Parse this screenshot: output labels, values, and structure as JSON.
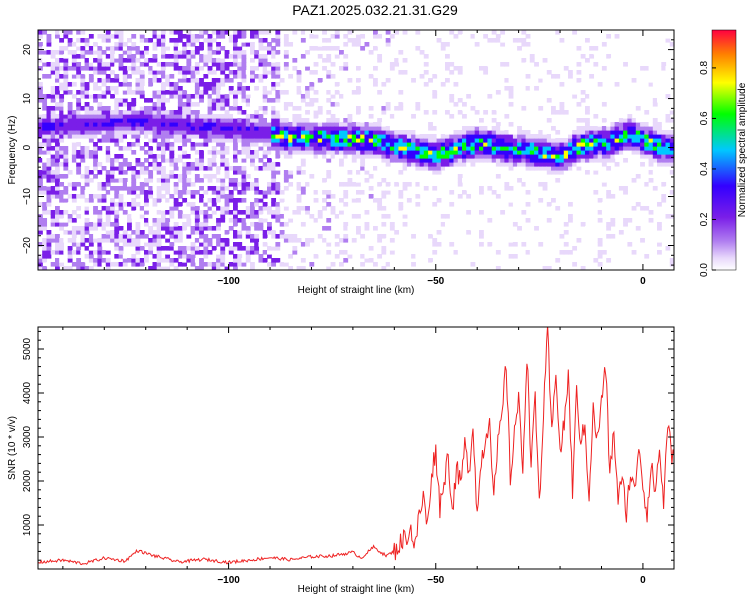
{
  "title": "PAZ1.2025.032.21.31.G29",
  "colors": {
    "snr_line": "#ee2222",
    "colormap": [
      "#ffffff",
      "#e8d8fb",
      "#b07ef0",
      "#7a1ee8",
      "#3300ff",
      "#00c8ff",
      "#00ff00",
      "#ffff00",
      "#ff7f00",
      "#ff0040"
    ]
  },
  "chart_data": [
    {
      "type": "heatmap",
      "title": "PAZ1.2025.032.21.31.G29",
      "xlabel": "Height of straight line (km)",
      "ylabel": "Frequency (Hz)",
      "xlim": [
        -146,
        7.5
      ],
      "ylim": [
        -25,
        24
      ],
      "xticks": [
        -100,
        -50,
        0
      ],
      "yticks": [
        -20,
        -10,
        0,
        10,
        20
      ],
      "colorbar": {
        "label": "Normalized spectral amplitude",
        "range": [
          0,
          0.95
        ],
        "ticks": [
          "0.0",
          "0.2",
          "0.4",
          "0.6",
          "0.8"
        ]
      },
      "ridge": [
        {
          "x": -130,
          "y": 5
        },
        {
          "x": -120,
          "y": 5.5
        },
        {
          "x": -110,
          "y": 4.5
        },
        {
          "x": -100,
          "y": 4
        },
        {
          "x": -90,
          "y": 3
        },
        {
          "x": -85,
          "y": 2
        },
        {
          "x": -75,
          "y": 2
        },
        {
          "x": -65,
          "y": 1.5
        },
        {
          "x": -58,
          "y": 0
        },
        {
          "x": -50,
          "y": -1.5
        },
        {
          "x": -40,
          "y": 1
        },
        {
          "x": -33,
          "y": 0
        },
        {
          "x": -25,
          "y": -1
        },
        {
          "x": -20,
          "y": -2
        },
        {
          "x": -15,
          "y": 0.5
        },
        {
          "x": -8,
          "y": 1
        },
        {
          "x": -3,
          "y": 3
        },
        {
          "x": 0,
          "y": 1.5
        },
        {
          "x": 5,
          "y": 0
        },
        {
          "x": 7.5,
          "y": 0
        }
      ]
    },
    {
      "type": "line",
      "xlabel": "Height of straight line (km)",
      "ylabel": "SNR (10 * v/v)",
      "xlim": [
        -146,
        7.5
      ],
      "ylim": [
        0,
        5500
      ],
      "xticks": [
        -100,
        -50,
        0
      ],
      "yticks": [
        1000,
        2000,
        3000,
        4000,
        5000
      ],
      "series": [
        {
          "x": [
            -146,
            -140,
            -135,
            -130,
            -125,
            -122,
            -118,
            -112,
            -106,
            -100,
            -95,
            -90,
            -85,
            -80,
            -75,
            -70,
            -68,
            -65,
            -62,
            -60,
            -58,
            -56,
            -55,
            -54,
            -53,
            -52,
            -51,
            -50,
            -49,
            -48,
            -47,
            -46,
            -45,
            -44,
            -43,
            -42,
            -41,
            -40,
            -39,
            -38,
            -37,
            -36,
            -35,
            -34,
            -33,
            -32,
            -31,
            -30,
            -29,
            -28,
            -27,
            -26,
            -25,
            -24,
            -23,
            -22,
            -21,
            -20,
            -19,
            -18,
            -17,
            -16,
            -15,
            -14,
            -13,
            -12,
            -11,
            -10,
            -9,
            -8,
            -7,
            -6,
            -5,
            -4,
            -3,
            -2,
            -1,
            0,
            1,
            2,
            3,
            4,
            5,
            6,
            7,
            7.5
          ],
          "y": [
            150,
            200,
            120,
            250,
            180,
            420,
            300,
            160,
            220,
            150,
            200,
            260,
            210,
            280,
            300,
            380,
            250,
            500,
            300,
            400,
            650,
            900,
            500,
            1200,
            1650,
            950,
            2200,
            2700,
            1400,
            2000,
            2600,
            1300,
            2300,
            1900,
            2800,
            2200,
            3300,
            1200,
            2500,
            2900,
            3500,
            1600,
            2800,
            3500,
            4700,
            2000,
            3200,
            3800,
            2300,
            4900,
            2500,
            3800,
            1500,
            3500,
            5400,
            3000,
            4600,
            2600,
            3300,
            4400,
            1800,
            4000,
            2900,
            3200,
            1700,
            3600,
            2900,
            3800,
            4600,
            2200,
            3100,
            1600,
            2000,
            1300,
            2200,
            1700,
            2900,
            1900,
            1300,
            2300,
            1800,
            2700,
            1500,
            3400,
            2400,
            2600
          ]
        }
      ]
    }
  ]
}
